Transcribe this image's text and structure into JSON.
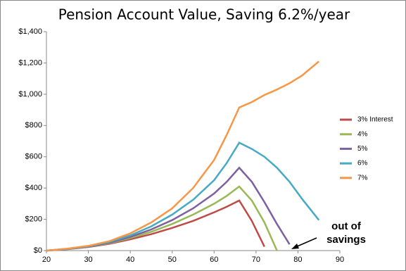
{
  "chart_data": {
    "type": "line",
    "title": "Pension Account Value, Saving 6.2%/year",
    "x": [
      20,
      25,
      30,
      35,
      40,
      45,
      50,
      55,
      60,
      63,
      66,
      69,
      72,
      75,
      78,
      81,
      85
    ],
    "series": [
      {
        "name": "3% Interest",
        "color": "#be4b48",
        "values": [
          0,
          9,
          23,
          43,
          72,
          105,
          145,
          190,
          245,
          280,
          320,
          190,
          25,
          null,
          null,
          null,
          null
        ]
      },
      {
        "name": "4%",
        "color": "#98b954",
        "values": [
          0,
          10,
          25,
          47,
          80,
          120,
          170,
          230,
          300,
          350,
          410,
          320,
          180,
          0,
          null,
          null,
          null
        ]
      },
      {
        "name": "5%",
        "color": "#7d60a0",
        "values": [
          0,
          10,
          26,
          50,
          88,
          135,
          195,
          270,
          365,
          440,
          530,
          440,
          310,
          170,
          40,
          null,
          null
        ]
      },
      {
        "name": "6%",
        "color": "#46aac5",
        "values": [
          0,
          11,
          28,
          55,
          97,
          155,
          230,
          325,
          450,
          560,
          690,
          650,
          600,
          530,
          440,
          330,
          195
        ]
      },
      {
        "name": "7%",
        "color": "#f79646",
        "values": [
          0,
          12,
          30,
          60,
          110,
          180,
          270,
          400,
          580,
          740,
          915,
          950,
          995,
          1030,
          1070,
          1120,
          1210
        ]
      }
    ],
    "xlim": [
      20,
      90
    ],
    "xticks": [
      20,
      30,
      40,
      50,
      60,
      70,
      80,
      90
    ],
    "ylim": [
      0,
      1400
    ],
    "yticks": [
      {
        "value": 0,
        "label": "$0"
      },
      {
        "value": 200,
        "label": "$200"
      },
      {
        "value": 400,
        "label": "$400"
      },
      {
        "value": 600,
        "label": "$600"
      },
      {
        "value": 800,
        "label": "$800"
      },
      {
        "value": 1000,
        "label": "$1,000"
      },
      {
        "value": 1200,
        "label": "$1,200"
      },
      {
        "value": 1400,
        "label": "$1,400"
      }
    ],
    "annotation": [
      "out of",
      "savings"
    ]
  }
}
